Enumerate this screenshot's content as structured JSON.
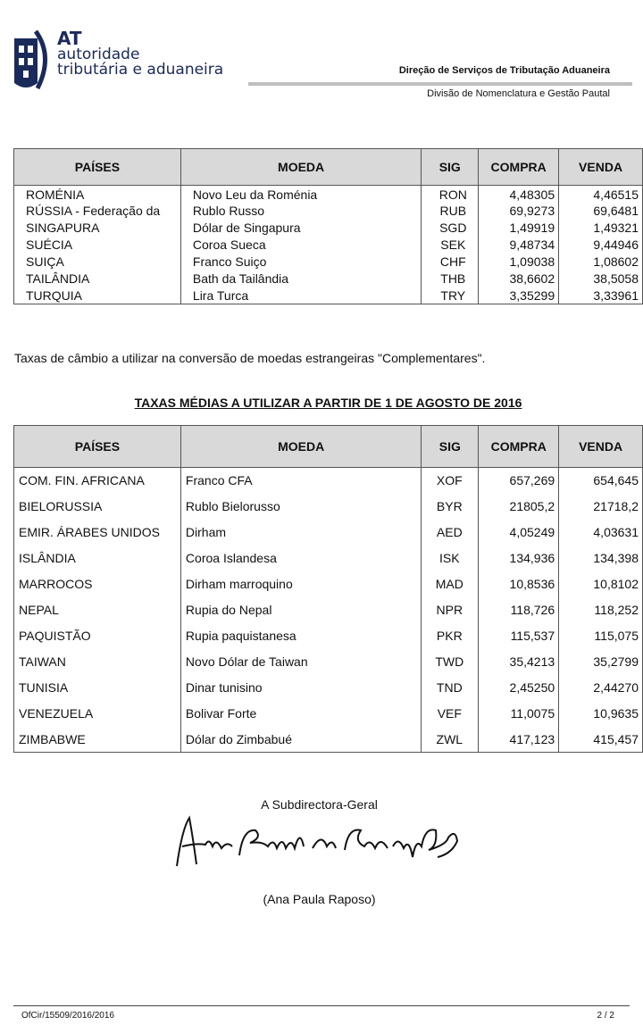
{
  "header": {
    "logo_text": [
      "AT",
      "autoridade",
      "tributária e aduaneira"
    ],
    "brand_color": "#1a2a5a",
    "direction": "Direção de Serviços de Tributação Aduaneira",
    "division": "Divisão de Nomenclatura e Gestão Pautal"
  },
  "table1": {
    "columns": [
      "PAÍSES",
      "MOEDA",
      "SIG",
      "COMPRA",
      "VENDA"
    ],
    "rows": [
      [
        "ROMÉNIA",
        "Novo Leu da Roménia",
        "RON",
        "4,48305",
        "4,46515"
      ],
      [
        "RÚSSIA - Federação da",
        "Rublo Russo",
        "RUB",
        "69,9273",
        "69,6481"
      ],
      [
        "SINGAPURA",
        "Dólar de Singapura",
        "SGD",
        "1,49919",
        "1,49321"
      ],
      [
        "SUÉCIA",
        "Coroa Sueca",
        "SEK",
        "9,48734",
        "9,44946"
      ],
      [
        "SUIÇA",
        "Franco Suiço",
        "CHF",
        "1,09038",
        "1,08602"
      ],
      [
        "TAILÂNDIA",
        "Bath da Tailândia",
        "THB",
        "38,6602",
        "38,5058"
      ],
      [
        "TURQUIA",
        "Lira Turca",
        "TRY",
        "3,35299",
        "3,33961"
      ]
    ]
  },
  "note": "Taxas de câmbio a utilizar na conversão de moedas estrangeiras \"Complementares\".",
  "table2_title": "TAXAS MÉDIAS A UTILIZAR A PARTIR DE 1 DE AGOSTO DE 2016",
  "table2": {
    "columns": [
      "PAÍSES",
      "MOEDA",
      "SIG",
      "COMPRA",
      "VENDA"
    ],
    "rows": [
      [
        "COM. FIN. AFRICANA",
        "Franco CFA",
        "XOF",
        "657,269",
        "654,645"
      ],
      [
        "BIELORUSSIA",
        "Rublo Bielorusso",
        "BYR",
        "21805,2",
        "21718,2"
      ],
      [
        "EMIR. ÁRABES UNIDOS",
        "Dirham",
        "AED",
        "4,05249",
        "4,03631"
      ],
      [
        "ISLÂNDIA",
        "Coroa Islandesa",
        "ISK",
        "134,936",
        "134,398"
      ],
      [
        "MARROCOS",
        "Dirham marroquino",
        "MAD",
        "10,8536",
        "10,8102"
      ],
      [
        "NEPAL",
        "Rupia do Nepal",
        "NPR",
        "118,726",
        "118,252"
      ],
      [
        "PAQUISTÃO",
        "Rupia paquistanesa",
        "PKR",
        "115,537",
        "115,075"
      ],
      [
        "TAIWAN",
        "Novo Dólar de Taiwan",
        "TWD",
        "35,4213",
        "35,2799"
      ],
      [
        "TUNISIA",
        "Dinar tunisino",
        "TND",
        "2,45250",
        "2,44270"
      ],
      [
        "VENEZUELA",
        "Bolivar Forte",
        "VEF",
        "11,0075",
        "10,9635"
      ],
      [
        "ZIMBABWE",
        "Dólar do Zimbabué",
        "ZWL",
        "417,123",
        "415,457"
      ]
    ]
  },
  "signature": {
    "role": "A Subdirectora-Geral",
    "signed_name": "Ana Paula Raposo",
    "name": "(Ana Paula Raposo)"
  },
  "footer": {
    "ref": "OfCir/15509/2016/2016",
    "page": "2 / 2"
  }
}
